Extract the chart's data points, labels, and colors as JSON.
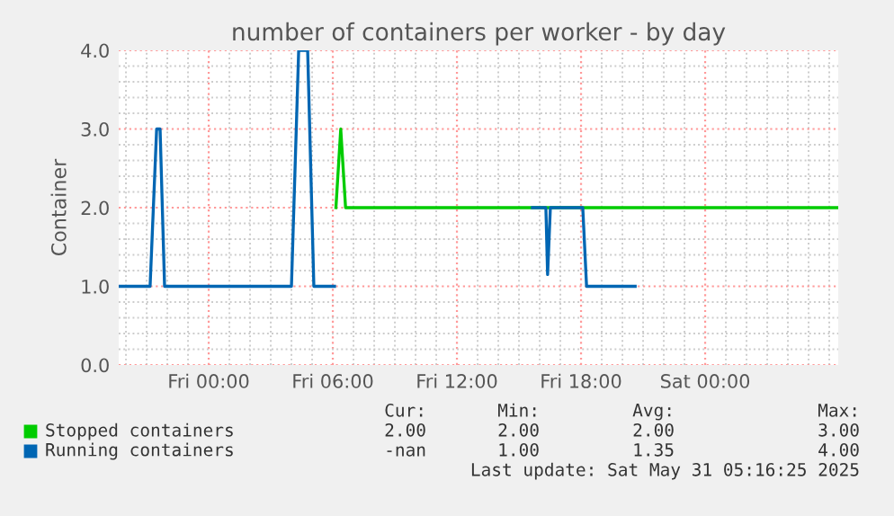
{
  "chart_data": {
    "type": "line",
    "title": "number of containers per worker - by day",
    "ylabel": "Container",
    "xlim": [
      "2025-05-29T19:39",
      "2025-05-31T06:26"
    ],
    "xticks": [
      {
        "value": "2025-05-30T00:00",
        "label": "Fri 00:00"
      },
      {
        "value": "2025-05-30T06:00",
        "label": "Fri 06:00"
      },
      {
        "value": "2025-05-30T12:00",
        "label": "Fri 12:00"
      },
      {
        "value": "2025-05-30T18:00",
        "label": "Fri 18:00"
      },
      {
        "value": "2025-05-31T00:00",
        "label": "Sat 00:00"
      }
    ],
    "ylim": [
      0,
      4
    ],
    "yticks": [
      {
        "value": 0,
        "label": "0.0"
      },
      {
        "value": 1,
        "label": "1.0"
      },
      {
        "value": 2,
        "label": "2.0"
      },
      {
        "value": 3,
        "label": "3.0"
      },
      {
        "value": 4,
        "label": "4.0"
      }
    ],
    "grid": true,
    "legend": "bottom",
    "series": [
      {
        "name": "Stopped containers",
        "color": "#00cc00",
        "x": [
          "2025-05-30T06:09",
          "2025-05-30T06:23",
          "2025-05-30T06:37",
          "2025-05-31T06:26"
        ],
        "values": [
          2,
          3,
          2,
          2
        ]
      },
      {
        "name": "Running containers",
        "color": "#0066b3",
        "x": [
          "2025-05-29T19:39",
          "2025-05-29T21:10",
          "2025-05-29T21:29",
          "2025-05-29T21:39",
          "2025-05-29T21:52",
          "2025-05-30T04:00",
          "2025-05-30T04:21",
          "2025-05-30T04:47",
          "2025-05-30T05:05",
          "2025-05-30T06:05",
          "2025-05-30T10:00",
          "2025-05-30T15:39",
          "2025-05-30T16:18",
          "2025-05-30T16:23",
          "2025-05-30T16:31",
          "2025-05-30T18:05",
          "2025-05-30T18:16",
          "2025-05-30T20:37"
        ],
        "values": [
          1,
          1,
          3,
          3,
          1,
          1,
          4,
          4,
          1,
          1,
          null,
          2,
          2,
          1.15,
          2,
          2,
          1,
          1
        ]
      }
    ],
    "annotations": [
      "Cur:",
      "Min:",
      "Avg:",
      "Max:",
      "2.00",
      "2.00",
      "2.00",
      "3.00",
      "-nan",
      "1.00",
      "1.35",
      "4.00",
      "Last update: Sat May 31 05:16:25 2025"
    ]
  }
}
